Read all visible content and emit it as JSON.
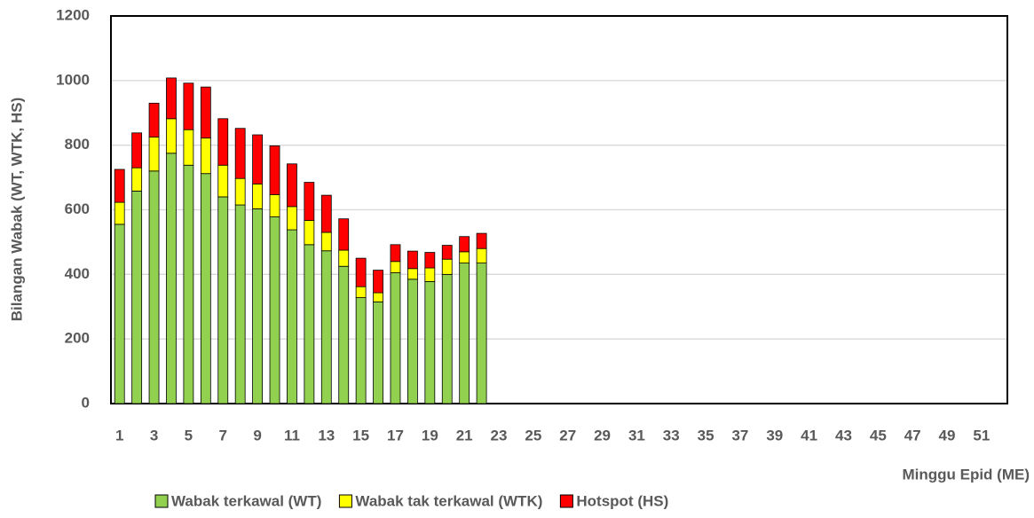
{
  "chart_data": {
    "type": "stacked_bar",
    "y_label": "Bilangan  Wabak (WT, WTK, HS)",
    "x_label": "Minggu Epid (ME)",
    "categories": [
      "1",
      null,
      "3",
      null,
      "5",
      null,
      "7",
      null,
      "9",
      null,
      "11",
      null,
      "13",
      null,
      "15",
      null,
      "17",
      null,
      "19",
      null,
      "21",
      null,
      "23",
      null,
      "25",
      null,
      "27",
      null,
      "29",
      null,
      "31",
      null,
      "33",
      null,
      "35",
      null,
      "37",
      null,
      "39",
      null,
      "41",
      null,
      "43",
      null,
      "45",
      null,
      "47",
      null,
      "49",
      null,
      "51",
      null
    ],
    "series": [
      {
        "name": "Wabak terkawal (WT)",
        "color": "#92d050",
        "values": [
          555,
          658,
          720,
          775,
          738,
          712,
          640,
          615,
          603,
          578,
          538,
          492,
          473,
          425,
          328,
          315,
          405,
          385,
          378,
          400,
          435,
          435,
          null,
          null,
          null,
          null,
          null,
          null,
          null,
          null,
          null,
          null,
          null,
          null,
          null,
          null,
          null,
          null,
          null,
          null,
          null,
          null,
          null,
          null,
          null,
          null,
          null,
          null,
          null,
          null,
          null,
          null
        ]
      },
      {
        "name": "Wabak tak terkawal (WTK)",
        "color": "#ffff00",
        "values": [
          68,
          72,
          105,
          107,
          110,
          110,
          98,
          82,
          77,
          69,
          72,
          75,
          57,
          50,
          34,
          28,
          35,
          33,
          42,
          47,
          35,
          45,
          null,
          null,
          null,
          null,
          null,
          null,
          null,
          null,
          null,
          null,
          null,
          null,
          null,
          null,
          null,
          null,
          null,
          null,
          null,
          null,
          null,
          null,
          null,
          null,
          null,
          null,
          null,
          null,
          null,
          null
        ]
      },
      {
        "name": "Hotspot (HS)",
        "color": "#ff0000",
        "values": [
          102,
          108,
          105,
          126,
          144,
          158,
          144,
          155,
          152,
          151,
          132,
          118,
          115,
          97,
          88,
          70,
          52,
          54,
          48,
          43,
          47,
          47,
          null,
          null,
          null,
          null,
          null,
          null,
          null,
          null,
          null,
          null,
          null,
          null,
          null,
          null,
          null,
          null,
          null,
          null,
          null,
          null,
          null,
          null,
          null,
          null,
          null,
          null,
          null,
          null,
          null,
          null
        ]
      }
    ],
    "ylim": [
      0,
      1200
    ],
    "yticks": [
      0,
      200,
      400,
      600,
      800,
      1000,
      1200
    ],
    "grid": true
  }
}
